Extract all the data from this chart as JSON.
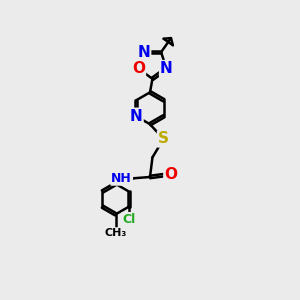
{
  "background_color": "#ebebeb",
  "bond_color": "#000000",
  "bond_width": 1.8,
  "atom_colors": {
    "N": "#0000ee",
    "O": "#ee0000",
    "S": "#bbaa00",
    "Cl": "#22aa22",
    "C": "#000000",
    "H": "#000000"
  },
  "font_size": 10,
  "dbo": 0.05
}
